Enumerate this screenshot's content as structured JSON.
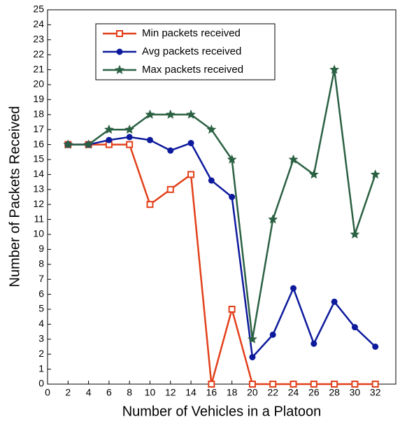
{
  "chart_data": {
    "type": "line",
    "xlabel": "Number of Vehicles in a Platoon",
    "ylabel": "Number of Packets Received",
    "x": [
      2,
      4,
      6,
      8,
      10,
      12,
      14,
      16,
      18,
      20,
      22,
      24,
      26,
      28,
      30,
      32
    ],
    "series": [
      {
        "name": "Min packets received",
        "color": "#e2401a",
        "marker": "square",
        "values": [
          16,
          16,
          16,
          16,
          12,
          13,
          14,
          0,
          5,
          0,
          0,
          0,
          0,
          0,
          0,
          0
        ]
      },
      {
        "name": "Avg  packets received",
        "color": "#0d1a9c",
        "marker": "circle",
        "values": [
          16,
          16,
          16.3,
          16.5,
          16.3,
          15.6,
          16.1,
          13.6,
          12.5,
          1.8,
          3.3,
          6.4,
          2.7,
          5.5,
          3.8,
          2.5
        ]
      },
      {
        "name": "Max packets received",
        "color": "#2b6143",
        "marker": "star",
        "values": [
          16,
          16,
          17,
          17,
          18,
          18,
          18,
          17,
          15,
          3,
          11,
          15,
          14,
          21,
          10,
          14
        ]
      }
    ],
    "xlim": [
      0,
      34
    ],
    "xticks": [
      0,
      2,
      4,
      6,
      8,
      10,
      12,
      14,
      16,
      18,
      20,
      22,
      24,
      26,
      28,
      30,
      32
    ],
    "ylim": [
      0,
      25
    ],
    "yticks": [
      0,
      1,
      2,
      3,
      4,
      5,
      6,
      7,
      8,
      9,
      10,
      11,
      12,
      13,
      14,
      15,
      16,
      17,
      18,
      19,
      20,
      21,
      22,
      23,
      24,
      25
    ],
    "legend": "upper left"
  }
}
